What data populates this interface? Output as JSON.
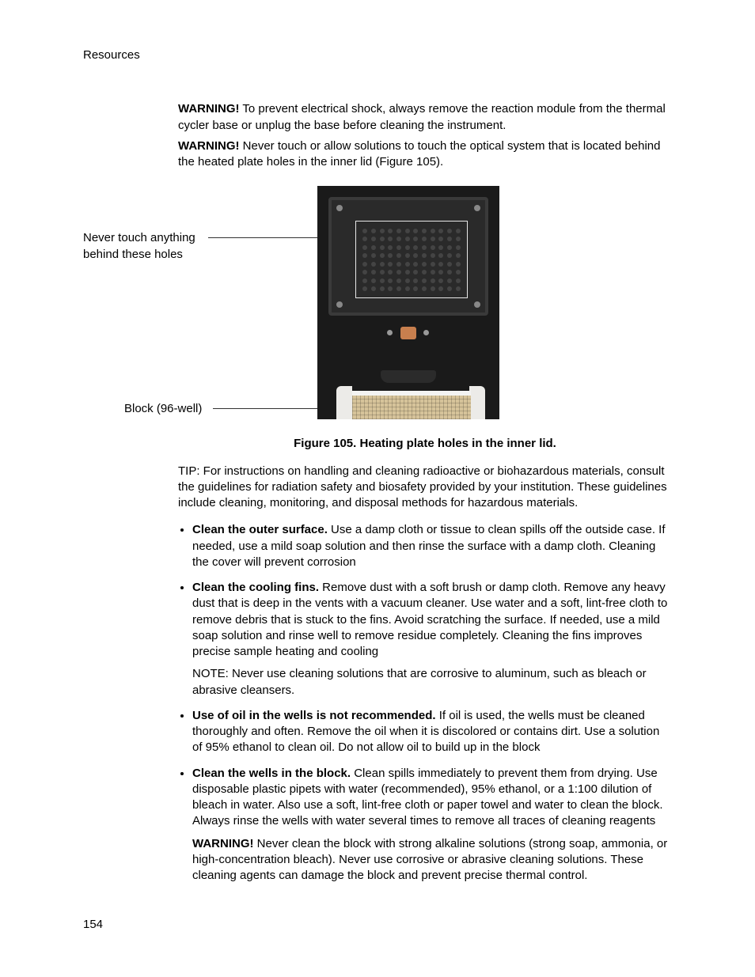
{
  "header": {
    "section": "Resources"
  },
  "warnings": {
    "w1_label": "WARNING!",
    "w1_text": " To prevent electrical shock, always remove the reaction module from the thermal cycler base or unplug the base before cleaning the instrument.",
    "w2_label": "WARNING!",
    "w2_text": " Never touch or allow solutions to touch the optical system that is located behind the heated plate holes in the inner lid (Figure 105)."
  },
  "figure": {
    "callout1_line1": "Never touch anything",
    "callout1_line2": "behind these holes",
    "callout2": "Block (96-well)",
    "caption": "Figure 105. Heating plate holes in the inner lid."
  },
  "tip": {
    "text": "TIP: For instructions on handling and cleaning radioactive or biohazardous materials, consult the guidelines for radiation safety and biosafety provided by your institution. These guidelines include cleaning, monitoring, and disposal methods for hazardous materials."
  },
  "bullets": {
    "b1_title": "Clean the outer surface.",
    "b1_text": "  Use a damp cloth or tissue to clean spills off the outside case. If needed, use a mild soap solution and then rinse the surface with a damp cloth. Cleaning the cover will prevent corrosion",
    "b2_title": "Clean the cooling fins.",
    "b2_text": " Remove dust with a soft brush or damp cloth. Remove any heavy dust that is deep in the vents with a vacuum cleaner. Use water and a soft, lint-free cloth to remove debris that is stuck to the fins. Avoid scratching the surface. If needed, use a mild soap solution and rinse well to remove residue completely. Cleaning the fins improves precise sample heating and cooling",
    "b2_note": "NOTE: Never use cleaning solutions that are corrosive to aluminum, such as bleach or abrasive cleansers.",
    "b3_title": "Use of oil in the wells is not recommended.",
    "b3_text": " If oil is used, the wells must be cleaned thoroughly and often. Remove the oil when it is discolored or contains dirt. Use a solution of 95% ethanol to clean oil. Do not allow oil to build up in the block",
    "b4_title": "Clean the wells in the block.",
    "b4_text": " Clean spills immediately to prevent them from drying. Use disposable plastic pipets with water (recommended), 95% ethanol, or a 1:100 dilution of bleach in water. Also use a soft, lint-free cloth or paper towel and water to clean the block. Always rinse the wells with water several times to remove all traces of cleaning reagents",
    "b4_warn_label": "WARNING!",
    "b4_warn_text": " Never clean the block with strong alkaline solutions (strong soap, ammonia, or high-concentration bleach). Never use corrosive or abrasive cleaning solutions. These cleaning agents can damage the block and prevent precise thermal control."
  },
  "page_number": "154"
}
